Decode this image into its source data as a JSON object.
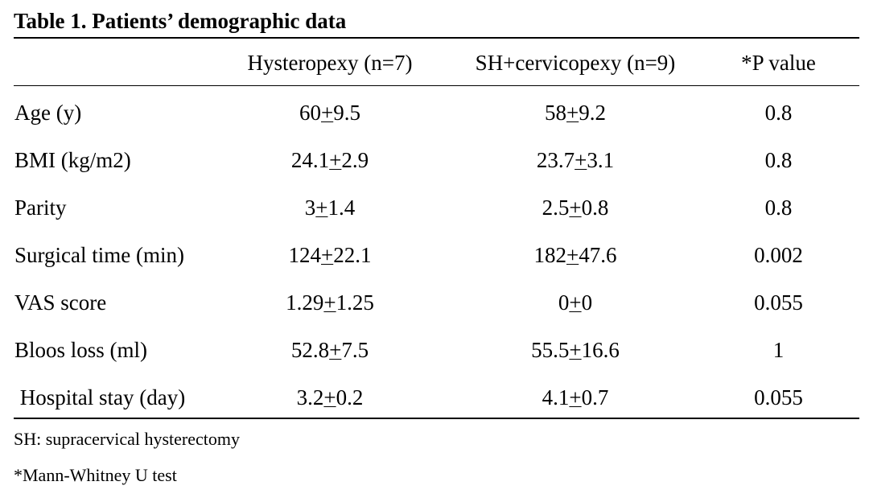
{
  "table": {
    "title": "Table 1. Patients’ demographic data",
    "headers": [
      "",
      "Hysteropexy (n=7)",
      "SH+cervicopexy (n=9)",
      "*P value"
    ],
    "rows": [
      {
        "label": "Age (y)",
        "hysteropexy": [
          "60",
          "+",
          "9.5"
        ],
        "sh_cervicopexy": [
          "58",
          "+",
          "9.2"
        ],
        "p": "0.8"
      },
      {
        "label": "BMI (kg/m2)",
        "hysteropexy": [
          "24.1",
          "+",
          "2.9"
        ],
        "sh_cervicopexy": [
          "23.7",
          "+",
          "3.1"
        ],
        "p": "0.8"
      },
      {
        "label": "Parity",
        "hysteropexy": [
          "3",
          "+",
          "1.4"
        ],
        "sh_cervicopexy": [
          "2.5",
          "+",
          "0.8"
        ],
        "p": "0.8"
      },
      {
        "label": "Surgical time (min)",
        "hysteropexy": [
          "124",
          "+",
          "22.1"
        ],
        "sh_cervicopexy": [
          "182",
          "+",
          "47.6"
        ],
        "p": "0.002"
      },
      {
        "label": "VAS score",
        "hysteropexy": [
          "1.29",
          "+",
          "1.25"
        ],
        "sh_cervicopexy": [
          "0",
          "+",
          "0"
        ],
        "p": "0.055"
      },
      {
        "label": "Bloos loss (ml)",
        "hysteropexy": [
          "52.8",
          "+",
          "7.5"
        ],
        "sh_cervicopexy": [
          "55.5",
          "+",
          "16.6"
        ],
        "p": "1"
      },
      {
        "label": " Hospital stay (day)",
        "hysteropexy": [
          "3.2",
          "+",
          "0.2"
        ],
        "sh_cervicopexy": [
          "4.1",
          "+",
          "0.7"
        ],
        "p": "0.055"
      }
    ],
    "footnotes": [
      "SH: supracervical hysterectomy",
      "*Mann-Whitney U test"
    ]
  }
}
